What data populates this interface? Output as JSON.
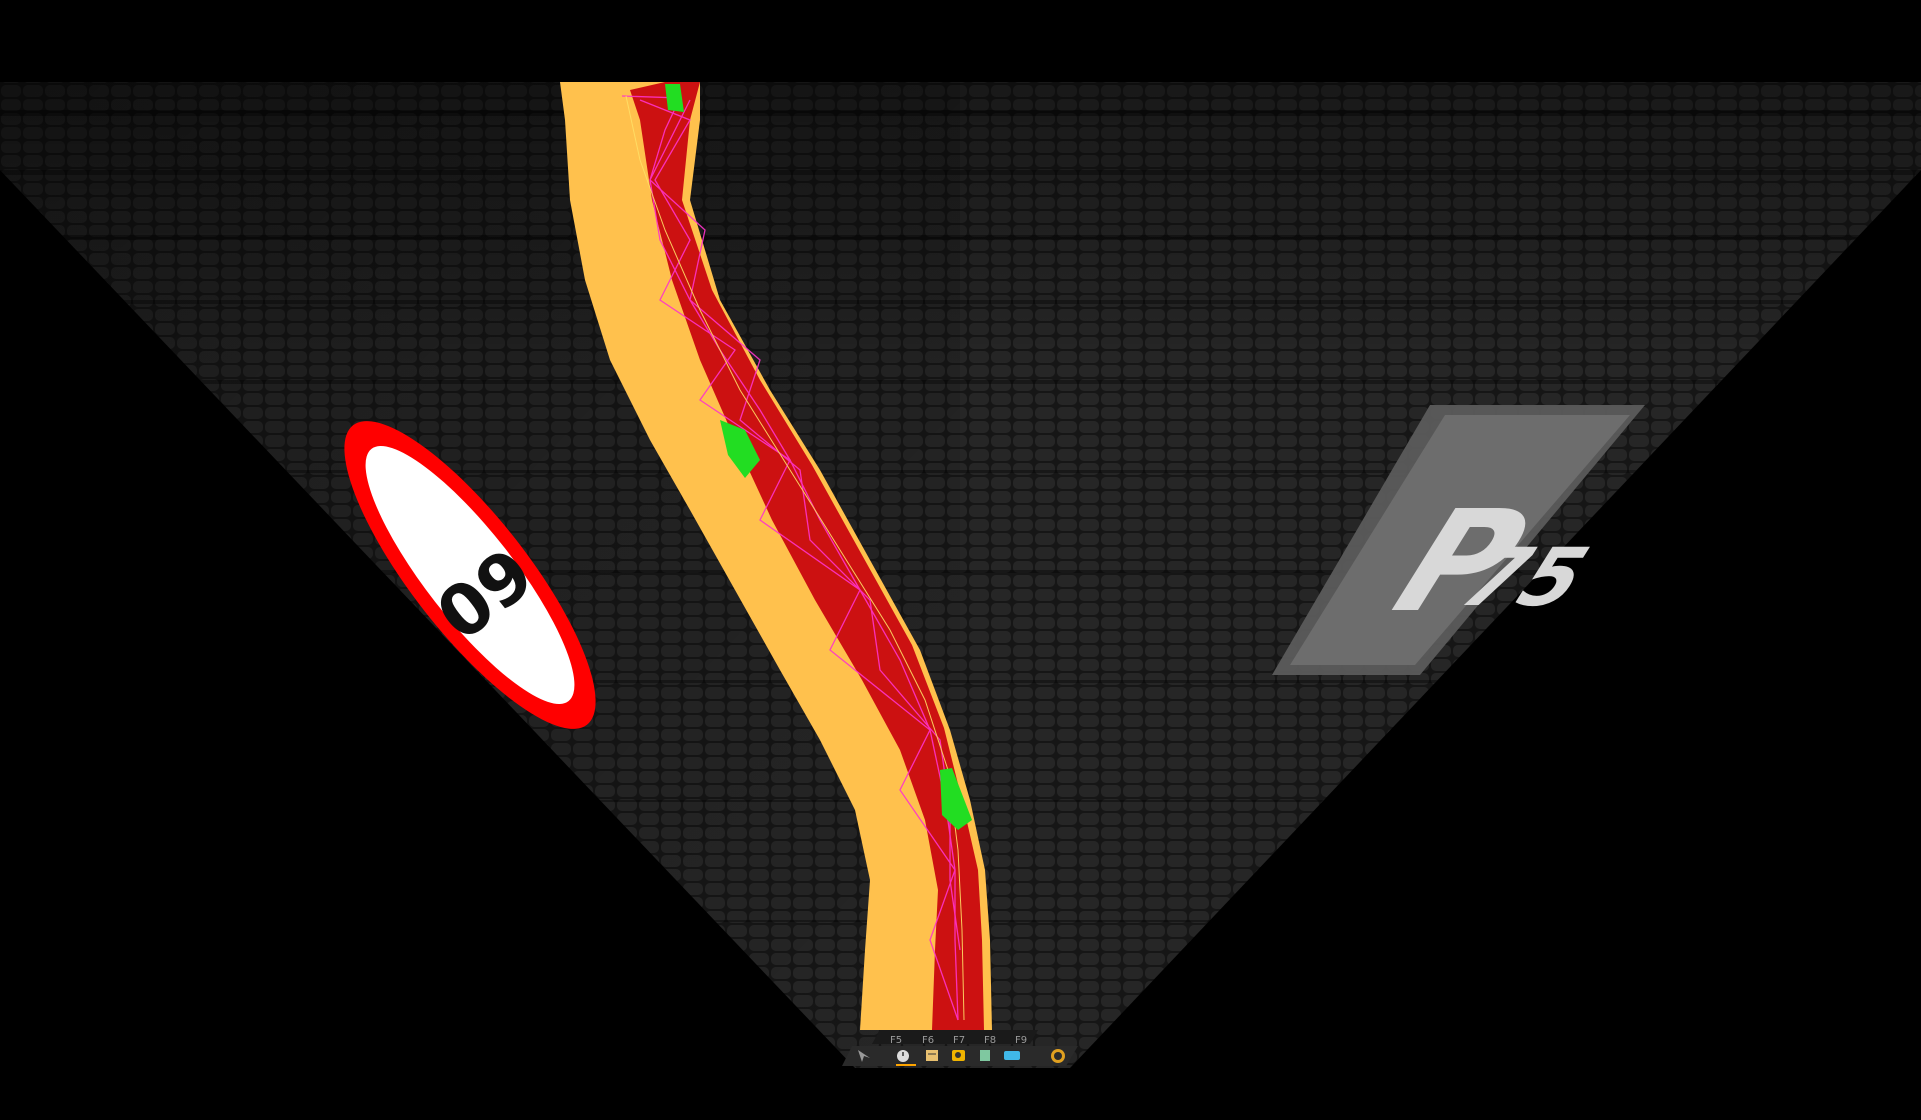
{
  "scene": {
    "description_icons": [
      "speed-limit-sign",
      "parking-sign",
      "waypoint-path"
    ],
    "colors": {
      "background": "#000000",
      "ground": "#1c1c1c",
      "road_edge": "#ffc14d",
      "road_surface": "#cc1111",
      "checkpoint": "#22dd22",
      "path_line": "#ff33cc",
      "sign_red": "#ff0000",
      "sign_white": "#ffffff",
      "parking_panel": "#6a6a6a"
    }
  },
  "speed_sign": {
    "value": "60"
  },
  "parking_sign": {
    "label": "P",
    "number": "75"
  },
  "hud": {
    "function_keys": [
      "F5",
      "F6",
      "F7",
      "F8",
      "F9"
    ],
    "toolbar_icons": [
      "cursor-icon",
      "clock-icon",
      "map-icon",
      "camera-icon",
      "car-icon",
      "bus-icon",
      "speedometer-icon"
    ]
  }
}
